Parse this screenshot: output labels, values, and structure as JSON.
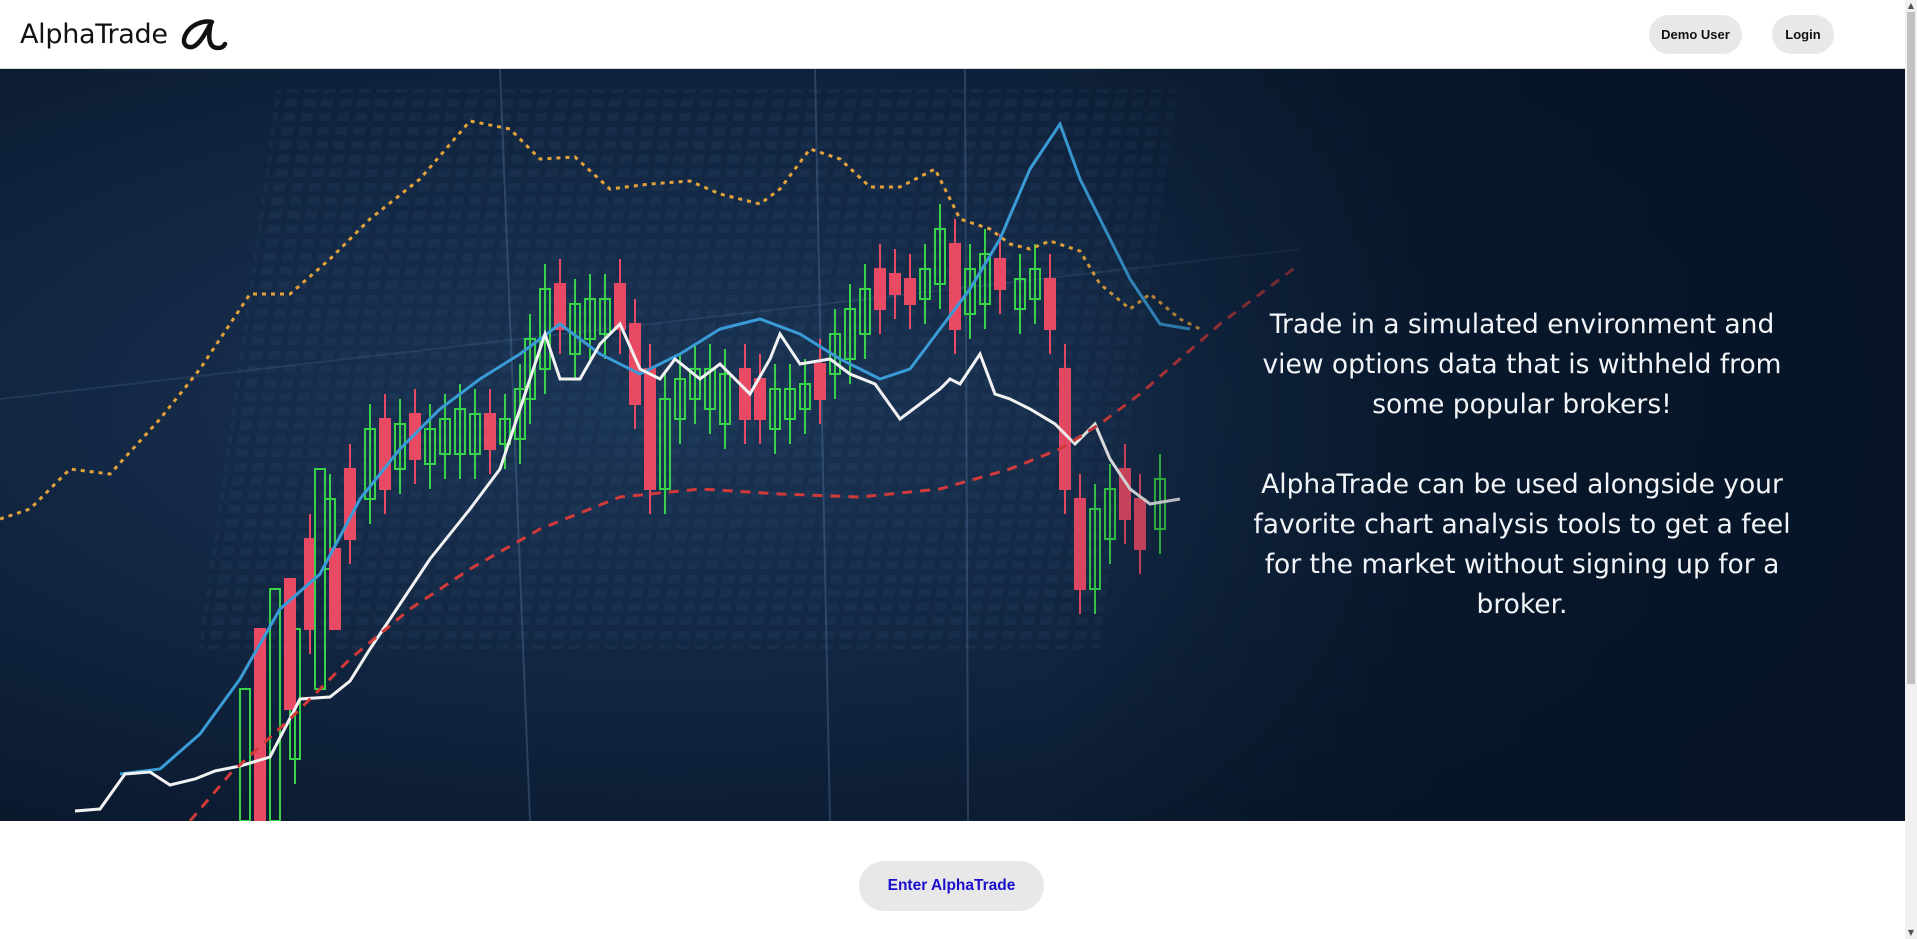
{
  "brand": {
    "name": "AlphaTrade",
    "logo_glyph": "alpha-icon"
  },
  "nav": {
    "demo_label": "Demo User",
    "login_label": "Login"
  },
  "hero": {
    "paragraph_1": "Trade in a simulated environment and view options data that is withheld from some popular brokers!",
    "paragraph_2": "AlphaTrade can be used alongside your favorite chart analysis tools to get a feel for the market without signing up for a broker.",
    "background": "candlestick-chart-image"
  },
  "cta": {
    "label": "Enter AlphaTrade"
  },
  "colors": {
    "hero_bg": "#0b1a30",
    "cta_text": "#1a0ecc",
    "button_bg": "#e8e8e8",
    "candle_up": "#39d04a",
    "candle_down": "#e84a64",
    "line_blue": "#3a9bd6",
    "line_orange": "#e3a23a",
    "line_red": "#d23a3a"
  }
}
